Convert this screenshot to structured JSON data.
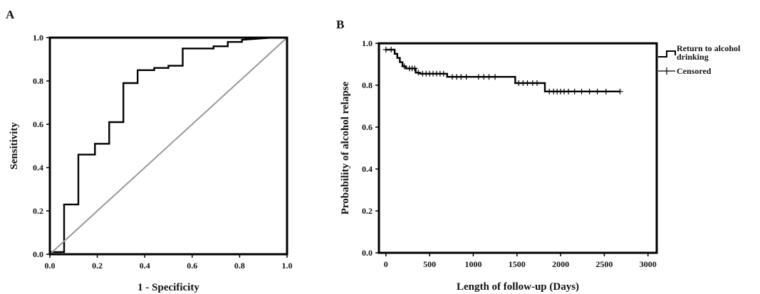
{
  "chart_data": [
    {
      "panel": "A",
      "type": "line",
      "title": "",
      "xlabel": "1 - Specificity",
      "ylabel": "Sensitivity",
      "xlim": [
        0,
        1
      ],
      "ylim": [
        0,
        1
      ],
      "xticks": [
        "0.0",
        "0.2",
        "0.4",
        "0.6",
        "0.8",
        "1.0"
      ],
      "yticks": [
        "0.0",
        "0.2",
        "0.4",
        "0.6",
        "0.8",
        "1.0"
      ],
      "grid": false,
      "series": [
        {
          "name": "",
          "color": "#000000",
          "x": [
            0,
            0,
            0.06,
            0.06,
            0.12,
            0.12,
            0.19,
            0.19,
            0.25,
            0.25,
            0.31,
            0.31,
            0.37,
            0.37,
            0.44,
            0.44,
            0.5,
            0.5,
            0.56,
            0.56,
            0.69,
            0.69,
            0.75,
            0.75,
            0.81,
            0.81,
            0.94,
            1.0
          ],
          "y": [
            0,
            0.01,
            0.01,
            0.23,
            0.23,
            0.46,
            0.46,
            0.51,
            0.51,
            0.61,
            0.61,
            0.79,
            0.79,
            0.85,
            0.85,
            0.86,
            0.86,
            0.87,
            0.87,
            0.95,
            0.95,
            0.96,
            0.96,
            0.98,
            0.98,
            0.99,
            1.0,
            1.0
          ]
        },
        {
          "name": "",
          "color": "#999999",
          "x": [
            0,
            1
          ],
          "y": [
            0,
            1
          ]
        }
      ]
    },
    {
      "panel": "B",
      "type": "line",
      "title": "",
      "xlabel": "Length of follow-up (Days)",
      "ylabel": "Probability of alcohol relapse",
      "xlim": [
        -80,
        3100
      ],
      "ylim": [
        0,
        1
      ],
      "xticks": [
        "0",
        "500",
        "1000",
        "1500",
        "2000",
        "2500",
        "3000"
      ],
      "yticks": [
        "0.0",
        "0.2",
        "0.4",
        "0.6",
        "0.8",
        "1.0"
      ],
      "grid": false,
      "legend": {
        "position": "right",
        "entries": [
          {
            "label": "Return to alcohol drinking",
            "marker": "step"
          },
          {
            "label": "Censored",
            "marker": "cross"
          }
        ]
      },
      "series": [
        {
          "name": "Return to alcohol drinking",
          "color": "#000000",
          "x": [
            0,
            100,
            100,
            130,
            130,
            160,
            160,
            190,
            190,
            230,
            230,
            340,
            340,
            390,
            390,
            700,
            700,
            1480,
            1480,
            1820,
            1820,
            2680
          ],
          "y": [
            0.97,
            0.97,
            0.95,
            0.95,
            0.93,
            0.93,
            0.91,
            0.91,
            0.89,
            0.89,
            0.88,
            0.88,
            0.86,
            0.86,
            0.855,
            0.855,
            0.84,
            0.84,
            0.81,
            0.81,
            0.77,
            0.77
          ]
        }
      ],
      "censored": {
        "x": [
          0,
          60,
          210,
          270,
          300,
          330,
          370,
          420,
          460,
          500,
          540,
          580,
          620,
          660,
          760,
          810,
          860,
          920,
          1060,
          1120,
          1180,
          1250,
          1520,
          1570,
          1620,
          1680,
          1730,
          1870,
          1920,
          1960,
          2000,
          2040,
          2090,
          2160,
          2240,
          2330,
          2420,
          2520,
          2680
        ],
        "y": [
          0.97,
          0.97,
          0.89,
          0.88,
          0.88,
          0.88,
          0.86,
          0.855,
          0.855,
          0.855,
          0.855,
          0.855,
          0.855,
          0.855,
          0.84,
          0.84,
          0.84,
          0.84,
          0.84,
          0.84,
          0.84,
          0.84,
          0.81,
          0.81,
          0.81,
          0.81,
          0.81,
          0.77,
          0.77,
          0.77,
          0.77,
          0.77,
          0.77,
          0.77,
          0.77,
          0.77,
          0.77,
          0.77,
          0.77
        ]
      }
    }
  ]
}
